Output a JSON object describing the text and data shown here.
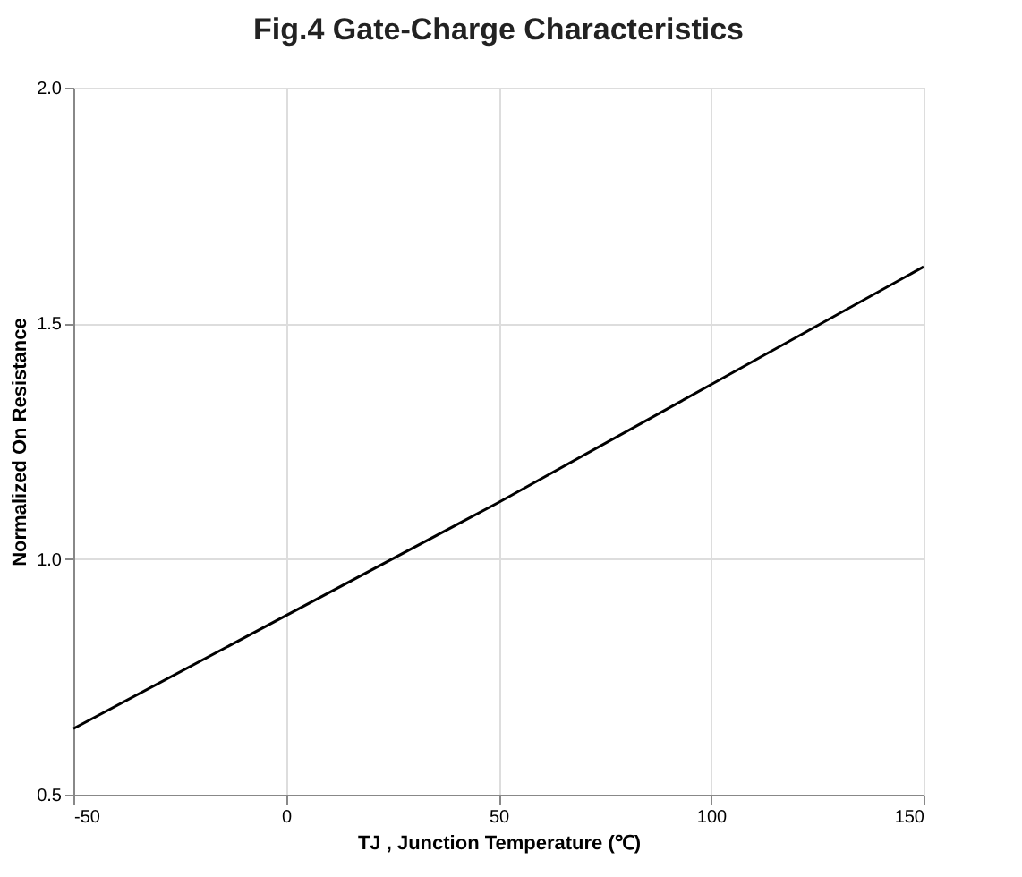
{
  "chart_data": {
    "type": "line",
    "title": "Fig.4 Gate-Charge Characteristics",
    "xlabel": "TJ , Junction Temperature (℃)",
    "ylabel": "Normalized On Resistance",
    "x": [
      -50,
      0,
      25,
      50,
      100,
      150
    ],
    "series": [
      {
        "color": "#000000",
        "values": [
          0.64,
          0.88,
          1.0,
          1.12,
          1.37,
          1.62
        ]
      }
    ],
    "xlim": [
      -50,
      150
    ],
    "xticks": [
      -50,
      0,
      50,
      100,
      150
    ],
    "ylim": [
      0.5,
      2.0
    ],
    "yticks": [
      {
        "value": 0.5,
        "label": "0.5"
      },
      {
        "value": 1.0,
        "label": "1.0"
      },
      {
        "value": 1.5,
        "label": "1.5"
      },
      {
        "value": 2.0,
        "label": "2.0"
      }
    ],
    "grid": true,
    "marker": "none",
    "line_style": "solid"
  }
}
